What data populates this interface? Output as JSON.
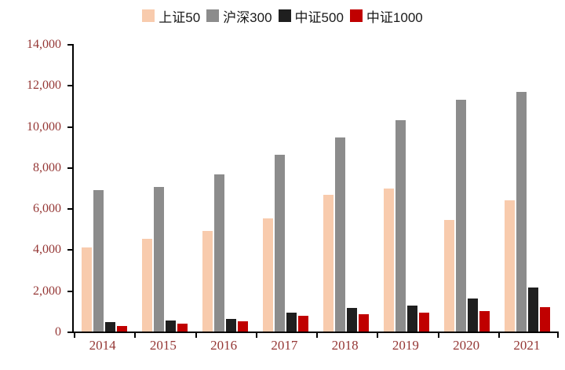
{
  "chart_data": {
    "type": "bar",
    "title": "",
    "xlabel": "",
    "ylabel": "",
    "ylim": [
      0,
      14000
    ],
    "ytick_step": 2000,
    "grid": false,
    "legend_position": "top-center",
    "categories": [
      "2014",
      "2015",
      "2016",
      "2017",
      "2018",
      "2019",
      "2020",
      "2021"
    ],
    "series": [
      {
        "name": "上证50",
        "color": "#F8CBAD",
        "values": [
          4100,
          4500,
          4900,
          5500,
          6650,
          6950,
          5450,
          6400
        ]
      },
      {
        "name": "沪深300",
        "color": "#8C8C8C",
        "values": [
          6900,
          7050,
          7650,
          8600,
          9450,
          10300,
          11300,
          11650
        ]
      },
      {
        "name": "中证500",
        "color": "#1F1F1F",
        "values": [
          450,
          550,
          620,
          900,
          1150,
          1250,
          1600,
          2150
        ]
      },
      {
        "name": "中证1000",
        "color": "#C00000",
        "values": [
          250,
          380,
          480,
          750,
          850,
          900,
          1000,
          1200
        ]
      }
    ],
    "axis_label_color": "#953735"
  }
}
